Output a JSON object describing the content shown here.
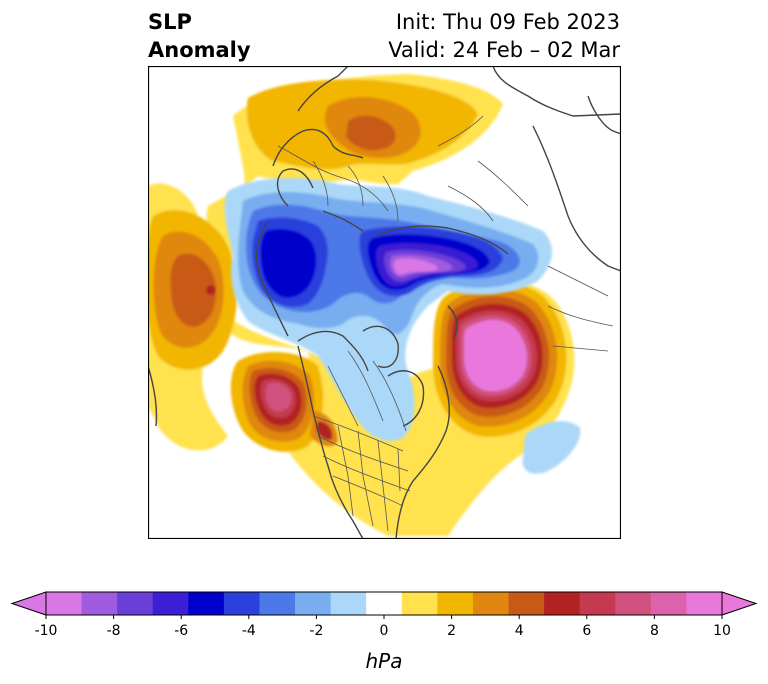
{
  "title": {
    "left_line1": "SLP",
    "left_line2": "Anomaly",
    "right_line1": "Init: Thu 09 Feb 2023",
    "right_line2": "Valid: 24 Feb – 02 Mar"
  },
  "colorbar": {
    "unit": "hPa",
    "ticks": [
      "-10",
      "-8",
      "-6",
      "-4",
      "-2",
      "0",
      "2",
      "4",
      "6",
      "8",
      "10"
    ],
    "min": -10,
    "max": 10,
    "step": 1,
    "colors": [
      "#d977e6",
      "#a05ce0",
      "#6c3ed8",
      "#3b1fd4",
      "#0000cc",
      "#2a3fdc",
      "#4d78e8",
      "#78aef0",
      "#abd8f8",
      "#ffffff",
      "#ffe24d",
      "#f2b600",
      "#e0870f",
      "#c85a16",
      "#b22222",
      "#c43a50",
      "#d1517e",
      "#dd62ac",
      "#ea78dc"
    ],
    "extend": "both"
  }
}
